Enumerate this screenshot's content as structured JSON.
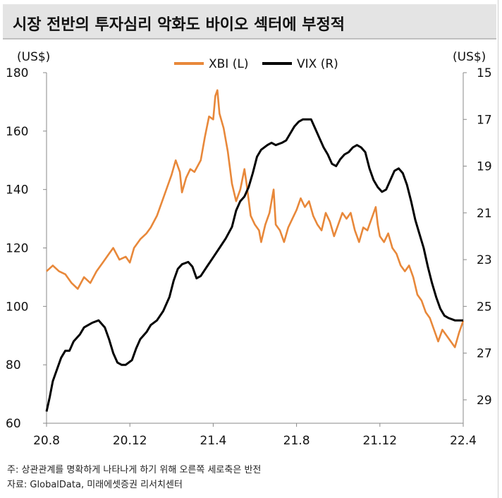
{
  "title": "시장 전반의 투자심리 악화도 바이오 섹터에 부정적",
  "colors": {
    "xbi": "#E8883A",
    "vix": "#000000",
    "axis": "#888888",
    "title_bg": "#e4e4e4"
  },
  "chart_data": {
    "type": "line",
    "title": "시장 전반의 투자심리 악화도 바이오 섹터에 부정적",
    "x_tick_labels": [
      "20.8",
      "20.12",
      "21.4",
      "21.8",
      "21.12",
      "22.4"
    ],
    "x_range": [
      0,
      20
    ],
    "left_axis": {
      "unit": "(US$)",
      "range": [
        60,
        180
      ],
      "ticks": [
        60,
        80,
        100,
        120,
        140,
        160,
        180
      ]
    },
    "right_axis": {
      "unit": "(US$)",
      "range": [
        15,
        30
      ],
      "inverted": true,
      "ticks": [
        15,
        17,
        19,
        21,
        23,
        25,
        27,
        29
      ]
    },
    "legend_position": "top-center",
    "series": [
      {
        "name": "XBI (L)",
        "axis": "left",
        "points": [
          [
            0,
            112
          ],
          [
            0.3,
            114
          ],
          [
            0.6,
            112
          ],
          [
            0.9,
            111
          ],
          [
            1.2,
            108
          ],
          [
            1.5,
            106
          ],
          [
            1.8,
            110
          ],
          [
            2.1,
            108
          ],
          [
            2.4,
            112
          ],
          [
            2.7,
            115
          ],
          [
            3,
            118
          ],
          [
            3.2,
            120
          ],
          [
            3.5,
            116
          ],
          [
            3.8,
            117
          ],
          [
            4,
            115
          ],
          [
            4.2,
            120
          ],
          [
            4.5,
            123
          ],
          [
            4.8,
            125
          ],
          [
            5,
            127
          ],
          [
            5.3,
            131
          ],
          [
            5.6,
            137
          ],
          [
            5.8,
            141
          ],
          [
            6,
            145
          ],
          [
            6.2,
            150
          ],
          [
            6.4,
            146
          ],
          [
            6.5,
            139
          ],
          [
            6.7,
            144
          ],
          [
            6.9,
            147
          ],
          [
            7.1,
            146
          ],
          [
            7.4,
            150
          ],
          [
            7.6,
            158
          ],
          [
            7.8,
            165
          ],
          [
            8,
            164
          ],
          [
            8.1,
            172
          ],
          [
            8.2,
            174
          ],
          [
            8.3,
            166
          ],
          [
            8.5,
            161
          ],
          [
            8.7,
            153
          ],
          [
            8.9,
            142
          ],
          [
            9.1,
            136
          ],
          [
            9.3,
            140
          ],
          [
            9.5,
            147
          ],
          [
            9.6,
            142
          ],
          [
            9.8,
            131
          ],
          [
            10,
            128
          ],
          [
            10.2,
            126
          ],
          [
            10.3,
            122
          ],
          [
            10.5,
            128
          ],
          [
            10.7,
            132
          ],
          [
            10.9,
            140
          ],
          [
            11,
            128
          ],
          [
            11.2,
            126
          ],
          [
            11.4,
            122
          ],
          [
            11.6,
            127
          ],
          [
            11.8,
            130
          ],
          [
            12,
            133
          ],
          [
            12.2,
            137
          ],
          [
            12.4,
            134
          ],
          [
            12.6,
            136
          ],
          [
            12.8,
            131
          ],
          [
            13,
            128
          ],
          [
            13.2,
            126
          ],
          [
            13.4,
            132
          ],
          [
            13.6,
            129
          ],
          [
            13.8,
            124
          ],
          [
            14,
            128
          ],
          [
            14.2,
            132
          ],
          [
            14.4,
            130
          ],
          [
            14.6,
            132
          ],
          [
            14.8,
            126
          ],
          [
            15,
            122
          ],
          [
            15.2,
            127
          ],
          [
            15.4,
            126
          ],
          [
            15.6,
            130
          ],
          [
            15.8,
            134
          ],
          [
            15.9,
            128
          ],
          [
            16,
            124
          ],
          [
            16.2,
            122
          ],
          [
            16.4,
            125
          ],
          [
            16.6,
            120
          ],
          [
            16.8,
            118
          ],
          [
            17,
            114
          ],
          [
            17.2,
            112
          ],
          [
            17.4,
            114
          ],
          [
            17.6,
            110
          ],
          [
            17.8,
            104
          ],
          [
            18,
            102
          ],
          [
            18.2,
            98
          ],
          [
            18.4,
            96
          ],
          [
            18.6,
            92
          ],
          [
            18.8,
            88
          ],
          [
            19,
            92
          ],
          [
            19.2,
            90
          ],
          [
            19.4,
            88
          ],
          [
            19.6,
            86
          ],
          [
            19.8,
            91
          ],
          [
            20,
            95
          ]
        ]
      },
      {
        "name": "VIX (R)",
        "axis": "right",
        "points": [
          [
            0,
            29.5
          ],
          [
            0.15,
            28.9
          ],
          [
            0.3,
            28.2
          ],
          [
            0.5,
            27.7
          ],
          [
            0.7,
            27.2
          ],
          [
            0.9,
            26.9
          ],
          [
            1.1,
            26.9
          ],
          [
            1.3,
            26.5
          ],
          [
            1.6,
            26.2
          ],
          [
            1.8,
            25.9
          ],
          [
            2,
            25.8
          ],
          [
            2.2,
            25.7
          ],
          [
            2.5,
            25.6
          ],
          [
            2.8,
            25.9
          ],
          [
            3,
            26.4
          ],
          [
            3.2,
            27.0
          ],
          [
            3.4,
            27.4
          ],
          [
            3.6,
            27.5
          ],
          [
            3.8,
            27.5
          ],
          [
            4.1,
            27.3
          ],
          [
            4.3,
            26.8
          ],
          [
            4.5,
            26.4
          ],
          [
            4.8,
            26.1
          ],
          [
            5,
            25.8
          ],
          [
            5.3,
            25.6
          ],
          [
            5.6,
            25.2
          ],
          [
            5.9,
            24.6
          ],
          [
            6.1,
            23.9
          ],
          [
            6.3,
            23.4
          ],
          [
            6.5,
            23.2
          ],
          [
            6.8,
            23.1
          ],
          [
            7,
            23.3
          ],
          [
            7.2,
            23.8
          ],
          [
            7.4,
            23.7
          ],
          [
            7.7,
            23.3
          ],
          [
            8,
            22.9
          ],
          [
            8.3,
            22.5
          ],
          [
            8.6,
            22.1
          ],
          [
            8.9,
            21.6
          ],
          [
            9.1,
            20.9
          ],
          [
            9.3,
            20.5
          ],
          [
            9.5,
            20.3
          ],
          [
            9.7,
            19.9
          ],
          [
            9.9,
            19.3
          ],
          [
            10.1,
            18.6
          ],
          [
            10.3,
            18.3
          ],
          [
            10.6,
            18.1
          ],
          [
            10.8,
            18.0
          ],
          [
            11,
            18.1
          ],
          [
            11.3,
            18.0
          ],
          [
            11.5,
            17.9
          ],
          [
            11.7,
            17.6
          ],
          [
            11.9,
            17.3
          ],
          [
            12.1,
            17.1
          ],
          [
            12.3,
            17.0
          ],
          [
            12.5,
            17.0
          ],
          [
            12.7,
            17.0
          ],
          [
            12.9,
            17.4
          ],
          [
            13.1,
            17.8
          ],
          [
            13.3,
            18.2
          ],
          [
            13.5,
            18.5
          ],
          [
            13.7,
            18.9
          ],
          [
            13.9,
            19.0
          ],
          [
            14.1,
            18.7
          ],
          [
            14.3,
            18.5
          ],
          [
            14.5,
            18.4
          ],
          [
            14.7,
            18.2
          ],
          [
            14.9,
            18.1
          ],
          [
            15.1,
            18.2
          ],
          [
            15.3,
            18.4
          ],
          [
            15.5,
            19.1
          ],
          [
            15.7,
            19.6
          ],
          [
            15.9,
            19.9
          ],
          [
            16.1,
            20.1
          ],
          [
            16.3,
            20.0
          ],
          [
            16.5,
            19.6
          ],
          [
            16.7,
            19.2
          ],
          [
            16.9,
            19.1
          ],
          [
            17.1,
            19.3
          ],
          [
            17.3,
            19.8
          ],
          [
            17.5,
            20.5
          ],
          [
            17.7,
            21.3
          ],
          [
            17.9,
            21.9
          ],
          [
            18.1,
            22.5
          ],
          [
            18.3,
            23.3
          ],
          [
            18.5,
            24.0
          ],
          [
            18.7,
            24.6
          ],
          [
            18.9,
            25.1
          ],
          [
            19.1,
            25.4
          ],
          [
            19.3,
            25.5
          ],
          [
            19.6,
            25.6
          ],
          [
            20,
            25.6
          ]
        ]
      }
    ]
  },
  "footnotes": [
    "주: 상관관계를 명확하게 나타나게 하기 위해 오른쪽 세로축은 반전",
    "자료: GlobalData, 미래에셋증권 리서치센터"
  ]
}
